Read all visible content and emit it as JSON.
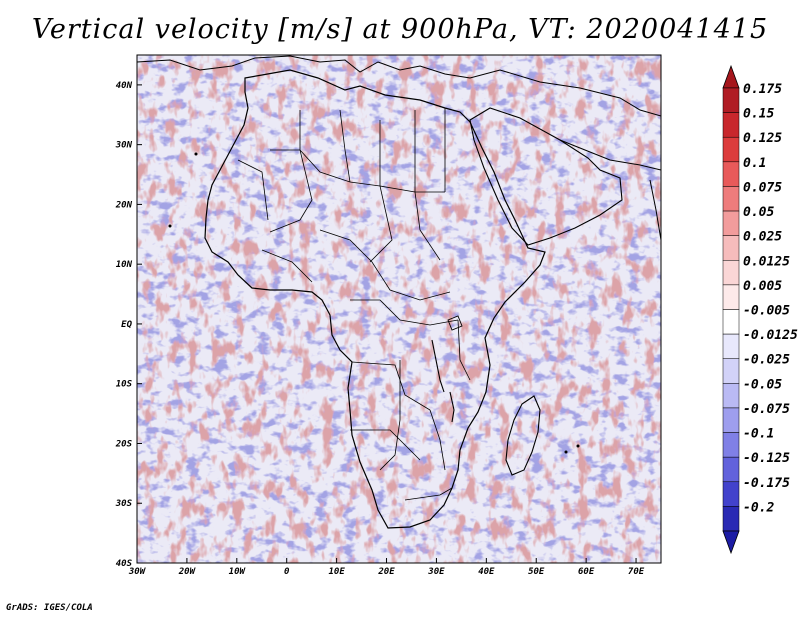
{
  "title": "Vertical velocity [m/s] at 900hPa, VT: 2020041415",
  "credit": "GrADS: IGES/COLA",
  "chart_data": {
    "type": "heatmap",
    "variable": "Vertical velocity",
    "units": "m/s",
    "level": "900hPa",
    "valid_time": "2020041415",
    "region": "Africa",
    "xlim": [
      -30,
      75
    ],
    "ylim": [
      -40,
      45
    ],
    "x_ticks": [
      {
        "value": -30,
        "label": "30W"
      },
      {
        "value": -20,
        "label": "20W"
      },
      {
        "value": -10,
        "label": "10W"
      },
      {
        "value": 0,
        "label": "0"
      },
      {
        "value": 10,
        "label": "10E"
      },
      {
        "value": 20,
        "label": "20E"
      },
      {
        "value": 30,
        "label": "30E"
      },
      {
        "value": 40,
        "label": "40E"
      },
      {
        "value": 50,
        "label": "50E"
      },
      {
        "value": 60,
        "label": "60E"
      },
      {
        "value": 70,
        "label": "70E"
      }
    ],
    "y_ticks": [
      {
        "value": 40,
        "label": "40N"
      },
      {
        "value": 30,
        "label": "30N"
      },
      {
        "value": 20,
        "label": "20N"
      },
      {
        "value": 10,
        "label": "10N"
      },
      {
        "value": 0,
        "label": "EQ"
      },
      {
        "value": -10,
        "label": "10S"
      },
      {
        "value": -20,
        "label": "20S"
      },
      {
        "value": -30,
        "label": "30S"
      },
      {
        "value": -40,
        "label": "40S"
      }
    ],
    "colorbar": {
      "orientation": "vertical",
      "extend": "both",
      "levels": [
        {
          "label": "0.175",
          "color": "#b01c24"
        },
        {
          "label": "0.15",
          "color": "#c8272c"
        },
        {
          "label": "0.125",
          "color": "#dc3c3c"
        },
        {
          "label": "0.1",
          "color": "#e85a5a"
        },
        {
          "label": "0.075",
          "color": "#ee7c7c"
        },
        {
          "label": "0.05",
          "color": "#f29c9c"
        },
        {
          "label": "0.025",
          "color": "#f6bcbc"
        },
        {
          "label": "0.0125",
          "color": "#fad6d6"
        },
        {
          "label": "0.005",
          "color": "#fdeaea"
        },
        {
          "label": "-0.005",
          "color": "#ffffff"
        },
        {
          "label": "-0.0125",
          "color": "#e8e8fc"
        },
        {
          "label": "-0.025",
          "color": "#d2d2f8"
        },
        {
          "label": "-0.05",
          "color": "#babaf4"
        },
        {
          "label": "-0.075",
          "color": "#9e9eee"
        },
        {
          "label": "-0.1",
          "color": "#8080e6"
        },
        {
          "label": "-0.125",
          "color": "#6262dc"
        },
        {
          "label": "-0.175",
          "color": "#4242cc"
        },
        {
          "label": "-0.2",
          "color": "#2a2ab4"
        }
      ],
      "top_tip_color": "#a5161c",
      "bottom_tip_color": "#1c1ca4"
    }
  }
}
